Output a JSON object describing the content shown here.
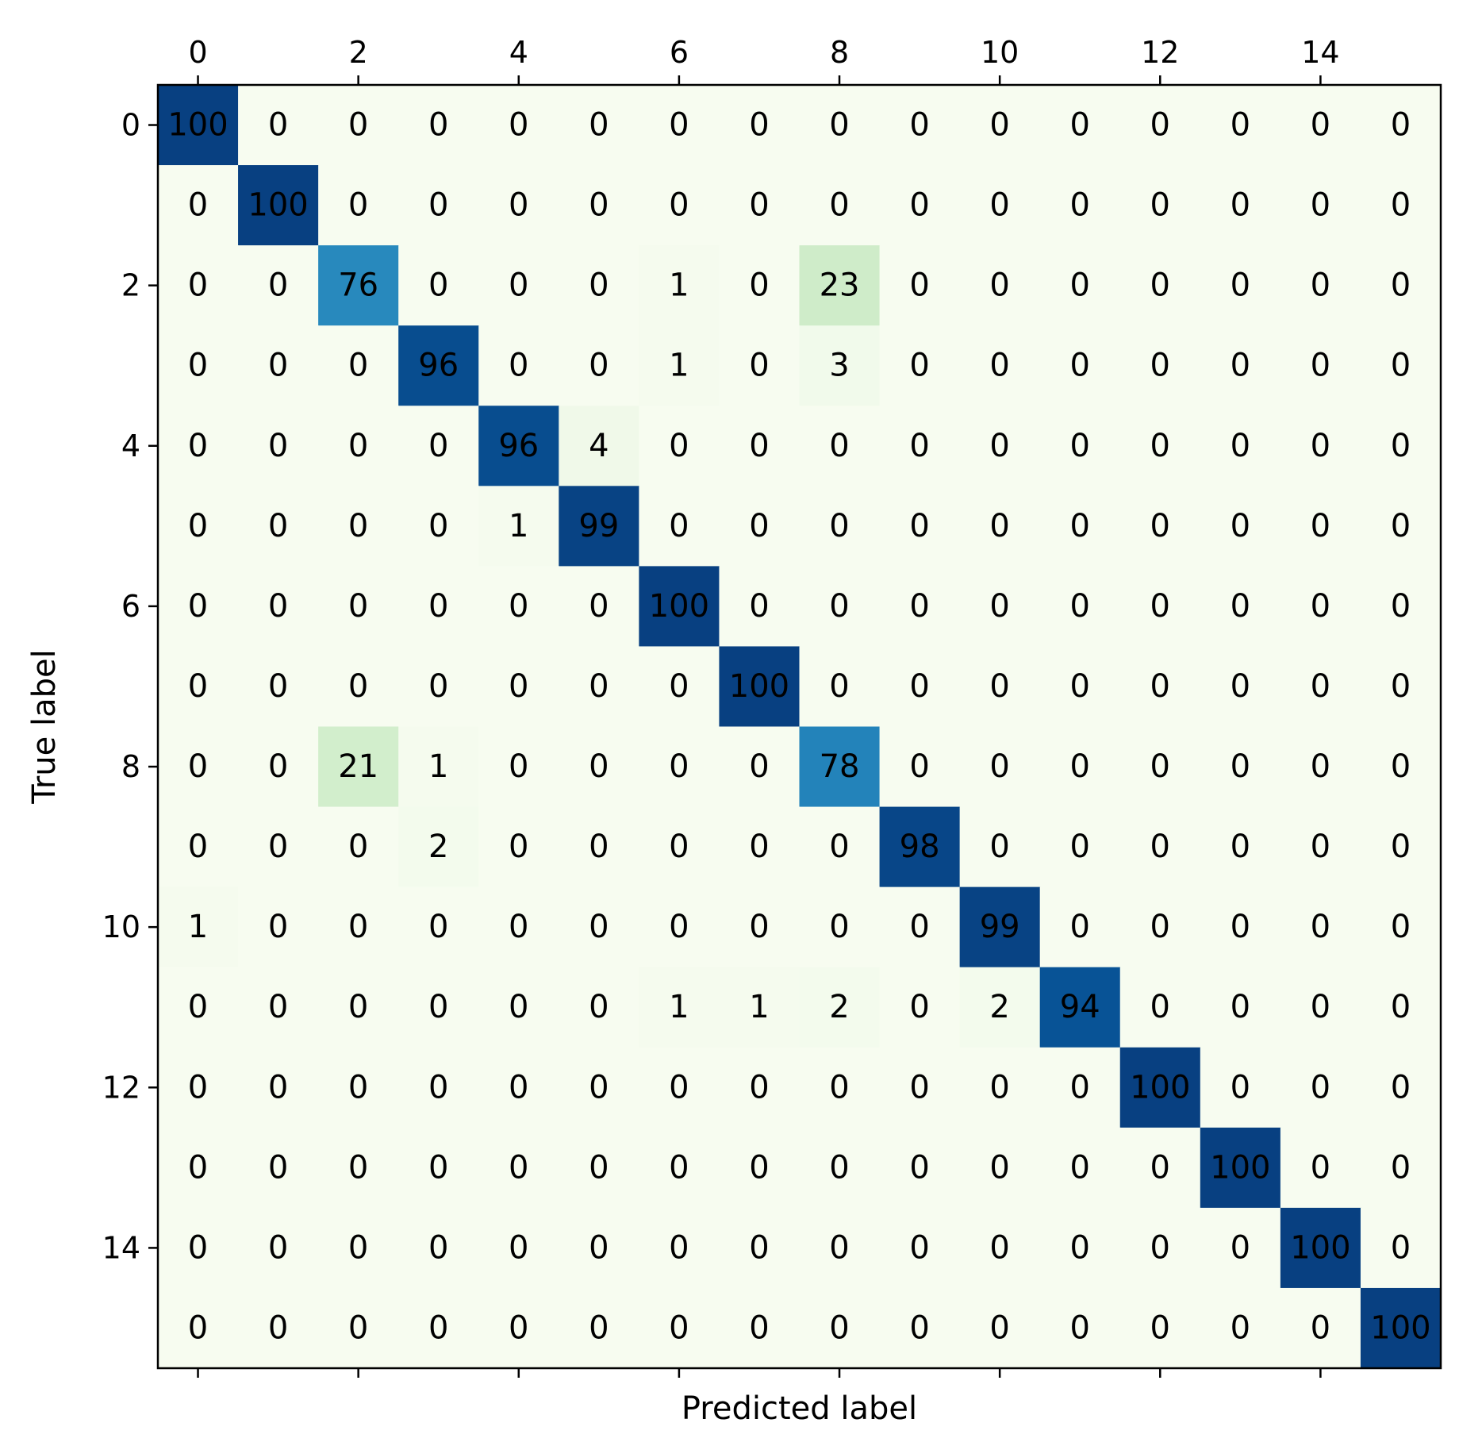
{
  "chart_data": {
    "type": "heatmap",
    "title": "",
    "xlabel": "Predicted label",
    "ylabel": "True label",
    "x_ticks": [
      "0",
      "2",
      "4",
      "6",
      "8",
      "10",
      "12",
      "14"
    ],
    "y_ticks": [
      "0",
      "2",
      "4",
      "6",
      "8",
      "10",
      "12",
      "14"
    ],
    "x_tick_position": "top",
    "colormap": "GnBu",
    "color_low": "#f7fcf0",
    "color_high": "#084081",
    "value_range": [
      0,
      100
    ],
    "matrix": [
      [
        100,
        0,
        0,
        0,
        0,
        0,
        0,
        0,
        0,
        0,
        0,
        0,
        0,
        0,
        0,
        0
      ],
      [
        0,
        100,
        0,
        0,
        0,
        0,
        0,
        0,
        0,
        0,
        0,
        0,
        0,
        0,
        0,
        0
      ],
      [
        0,
        0,
        76,
        0,
        0,
        0,
        1,
        0,
        23,
        0,
        0,
        0,
        0,
        0,
        0,
        0
      ],
      [
        0,
        0,
        0,
        96,
        0,
        0,
        1,
        0,
        3,
        0,
        0,
        0,
        0,
        0,
        0,
        0
      ],
      [
        0,
        0,
        0,
        0,
        96,
        4,
        0,
        0,
        0,
        0,
        0,
        0,
        0,
        0,
        0,
        0
      ],
      [
        0,
        0,
        0,
        0,
        1,
        99,
        0,
        0,
        0,
        0,
        0,
        0,
        0,
        0,
        0,
        0
      ],
      [
        0,
        0,
        0,
        0,
        0,
        0,
        100,
        0,
        0,
        0,
        0,
        0,
        0,
        0,
        0,
        0
      ],
      [
        0,
        0,
        0,
        0,
        0,
        0,
        0,
        100,
        0,
        0,
        0,
        0,
        0,
        0,
        0,
        0
      ],
      [
        0,
        0,
        21,
        1,
        0,
        0,
        0,
        0,
        78,
        0,
        0,
        0,
        0,
        0,
        0,
        0
      ],
      [
        0,
        0,
        0,
        2,
        0,
        0,
        0,
        0,
        0,
        98,
        0,
        0,
        0,
        0,
        0,
        0
      ],
      [
        1,
        0,
        0,
        0,
        0,
        0,
        0,
        0,
        0,
        0,
        99,
        0,
        0,
        0,
        0,
        0
      ],
      [
        0,
        0,
        0,
        0,
        0,
        0,
        1,
        1,
        2,
        0,
        2,
        94,
        0,
        0,
        0,
        0
      ],
      [
        0,
        0,
        0,
        0,
        0,
        0,
        0,
        0,
        0,
        0,
        0,
        0,
        100,
        0,
        0,
        0
      ],
      [
        0,
        0,
        0,
        0,
        0,
        0,
        0,
        0,
        0,
        0,
        0,
        0,
        0,
        100,
        0,
        0
      ],
      [
        0,
        0,
        0,
        0,
        0,
        0,
        0,
        0,
        0,
        0,
        0,
        0,
        0,
        0,
        100,
        0
      ],
      [
        0,
        0,
        0,
        0,
        0,
        0,
        0,
        0,
        0,
        0,
        0,
        0,
        0,
        0,
        0,
        100
      ]
    ]
  }
}
